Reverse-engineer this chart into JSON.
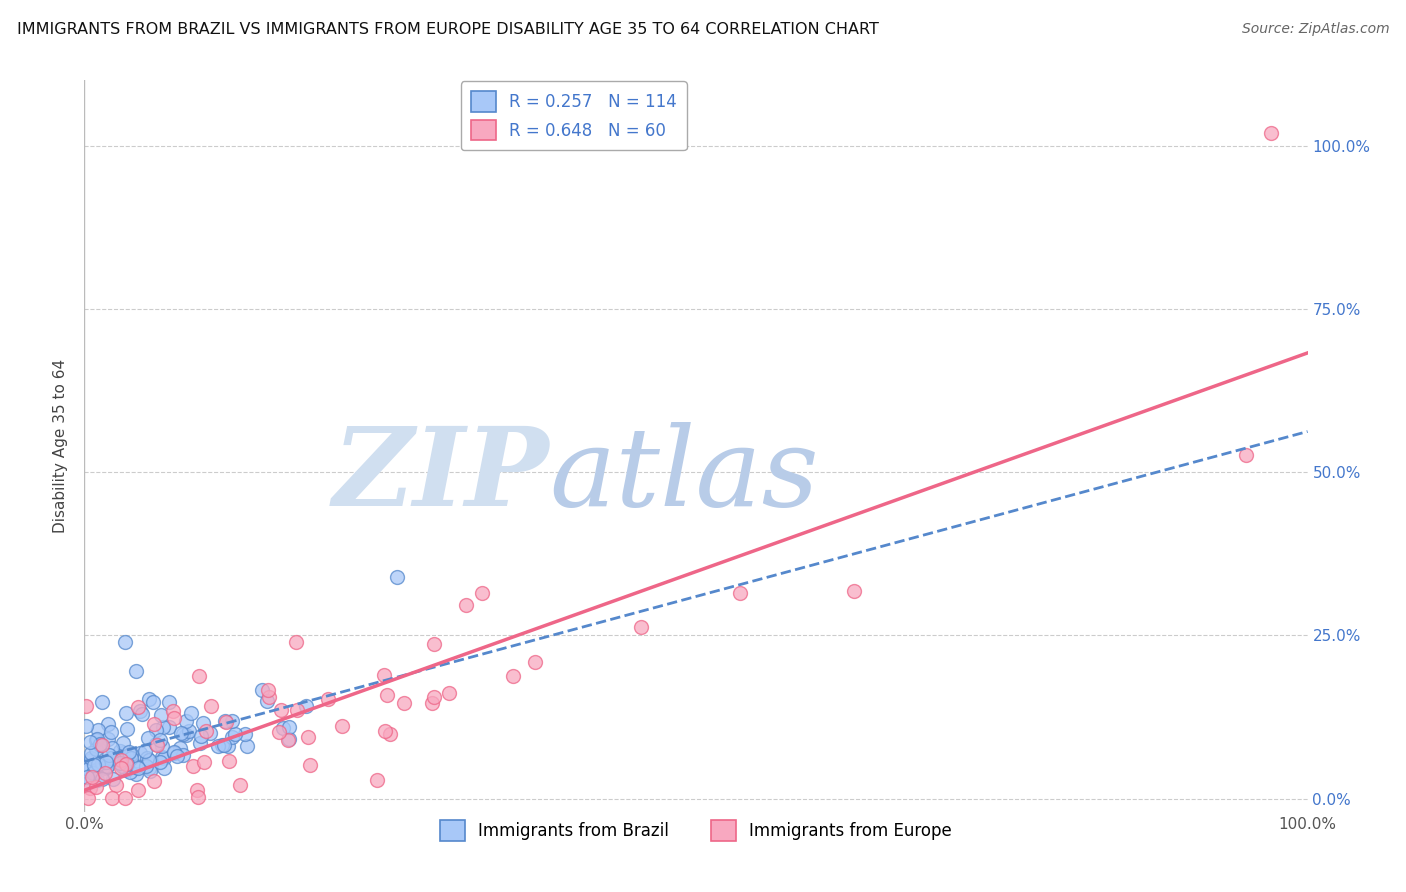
{
  "title": "IMMIGRANTS FROM BRAZIL VS IMMIGRANTS FROM EUROPE DISABILITY AGE 35 TO 64 CORRELATION CHART",
  "source": "Source: ZipAtlas.com",
  "ylabel": "Disability Age 35 to 64",
  "xlim": [
    0,
    1.0
  ],
  "ylim": [
    -0.02,
    1.1
  ],
  "ytick_positions": [
    0.0,
    0.25,
    0.5,
    0.75,
    1.0
  ],
  "ytick_labels_right": [
    "0.0%",
    "25.0%",
    "50.0%",
    "75.0%",
    "100.0%"
  ],
  "xtick_positions": [
    0.0,
    1.0
  ],
  "xtick_labels": [
    "0.0%",
    "100.0%"
  ],
  "legend_r1": "R = 0.257",
  "legend_n1": "N = 114",
  "legend_r2": "R = 0.648",
  "legend_n2": "N = 60",
  "color_brazil": "#a8c8f8",
  "color_europe": "#f8a8c0",
  "color_brazil_line": "#5588cc",
  "color_europe_line": "#ee6688",
  "color_text_blue": "#4477cc",
  "color_text_pink": "#ee6688",
  "watermark_zip": "ZIP",
  "watermark_atlas": "atlas",
  "watermark_color_zip": "#d0dff0",
  "watermark_color_atlas": "#b8cce8",
  "background_color": "#ffffff",
  "grid_color": "#cccccc",
  "brazil_intercept": 0.0,
  "brazil_slope": 0.4,
  "europe_intercept": 0.0,
  "europe_slope": 0.56,
  "dot_size": 100,
  "dot_alpha": 0.75,
  "dot_linewidth": 1.0
}
